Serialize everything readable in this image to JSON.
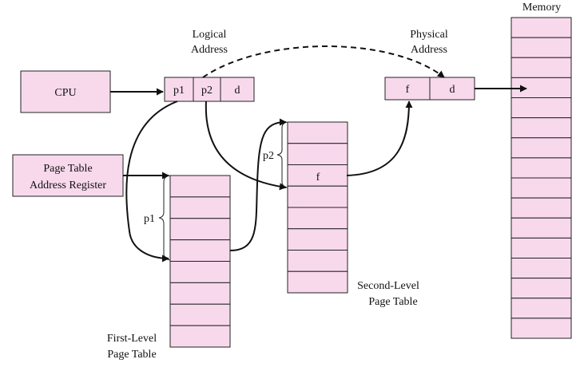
{
  "colors": {
    "fill": "#f8d9ec",
    "stroke": "#222222",
    "arrow": "#111111"
  },
  "cpu": {
    "label": "CPU"
  },
  "ptar": {
    "line1": "Page Table",
    "line2": "Address Register"
  },
  "logical_address": {
    "caption_line1": "Logical",
    "caption_line2": "Address",
    "fields": [
      "p1",
      "p2",
      "d"
    ]
  },
  "physical_address": {
    "caption_line1": "Physical",
    "caption_line2": "Address",
    "fields": [
      "f",
      "d"
    ]
  },
  "memory": {
    "label": "Memory"
  },
  "first_level": {
    "caption_line1": "First-Level",
    "caption_line2": "Page Table",
    "index_label": "p1"
  },
  "second_level": {
    "caption_line1": "Second-Level",
    "caption_line2": "Page Table",
    "index_label": "p2",
    "entry_label": "f"
  }
}
